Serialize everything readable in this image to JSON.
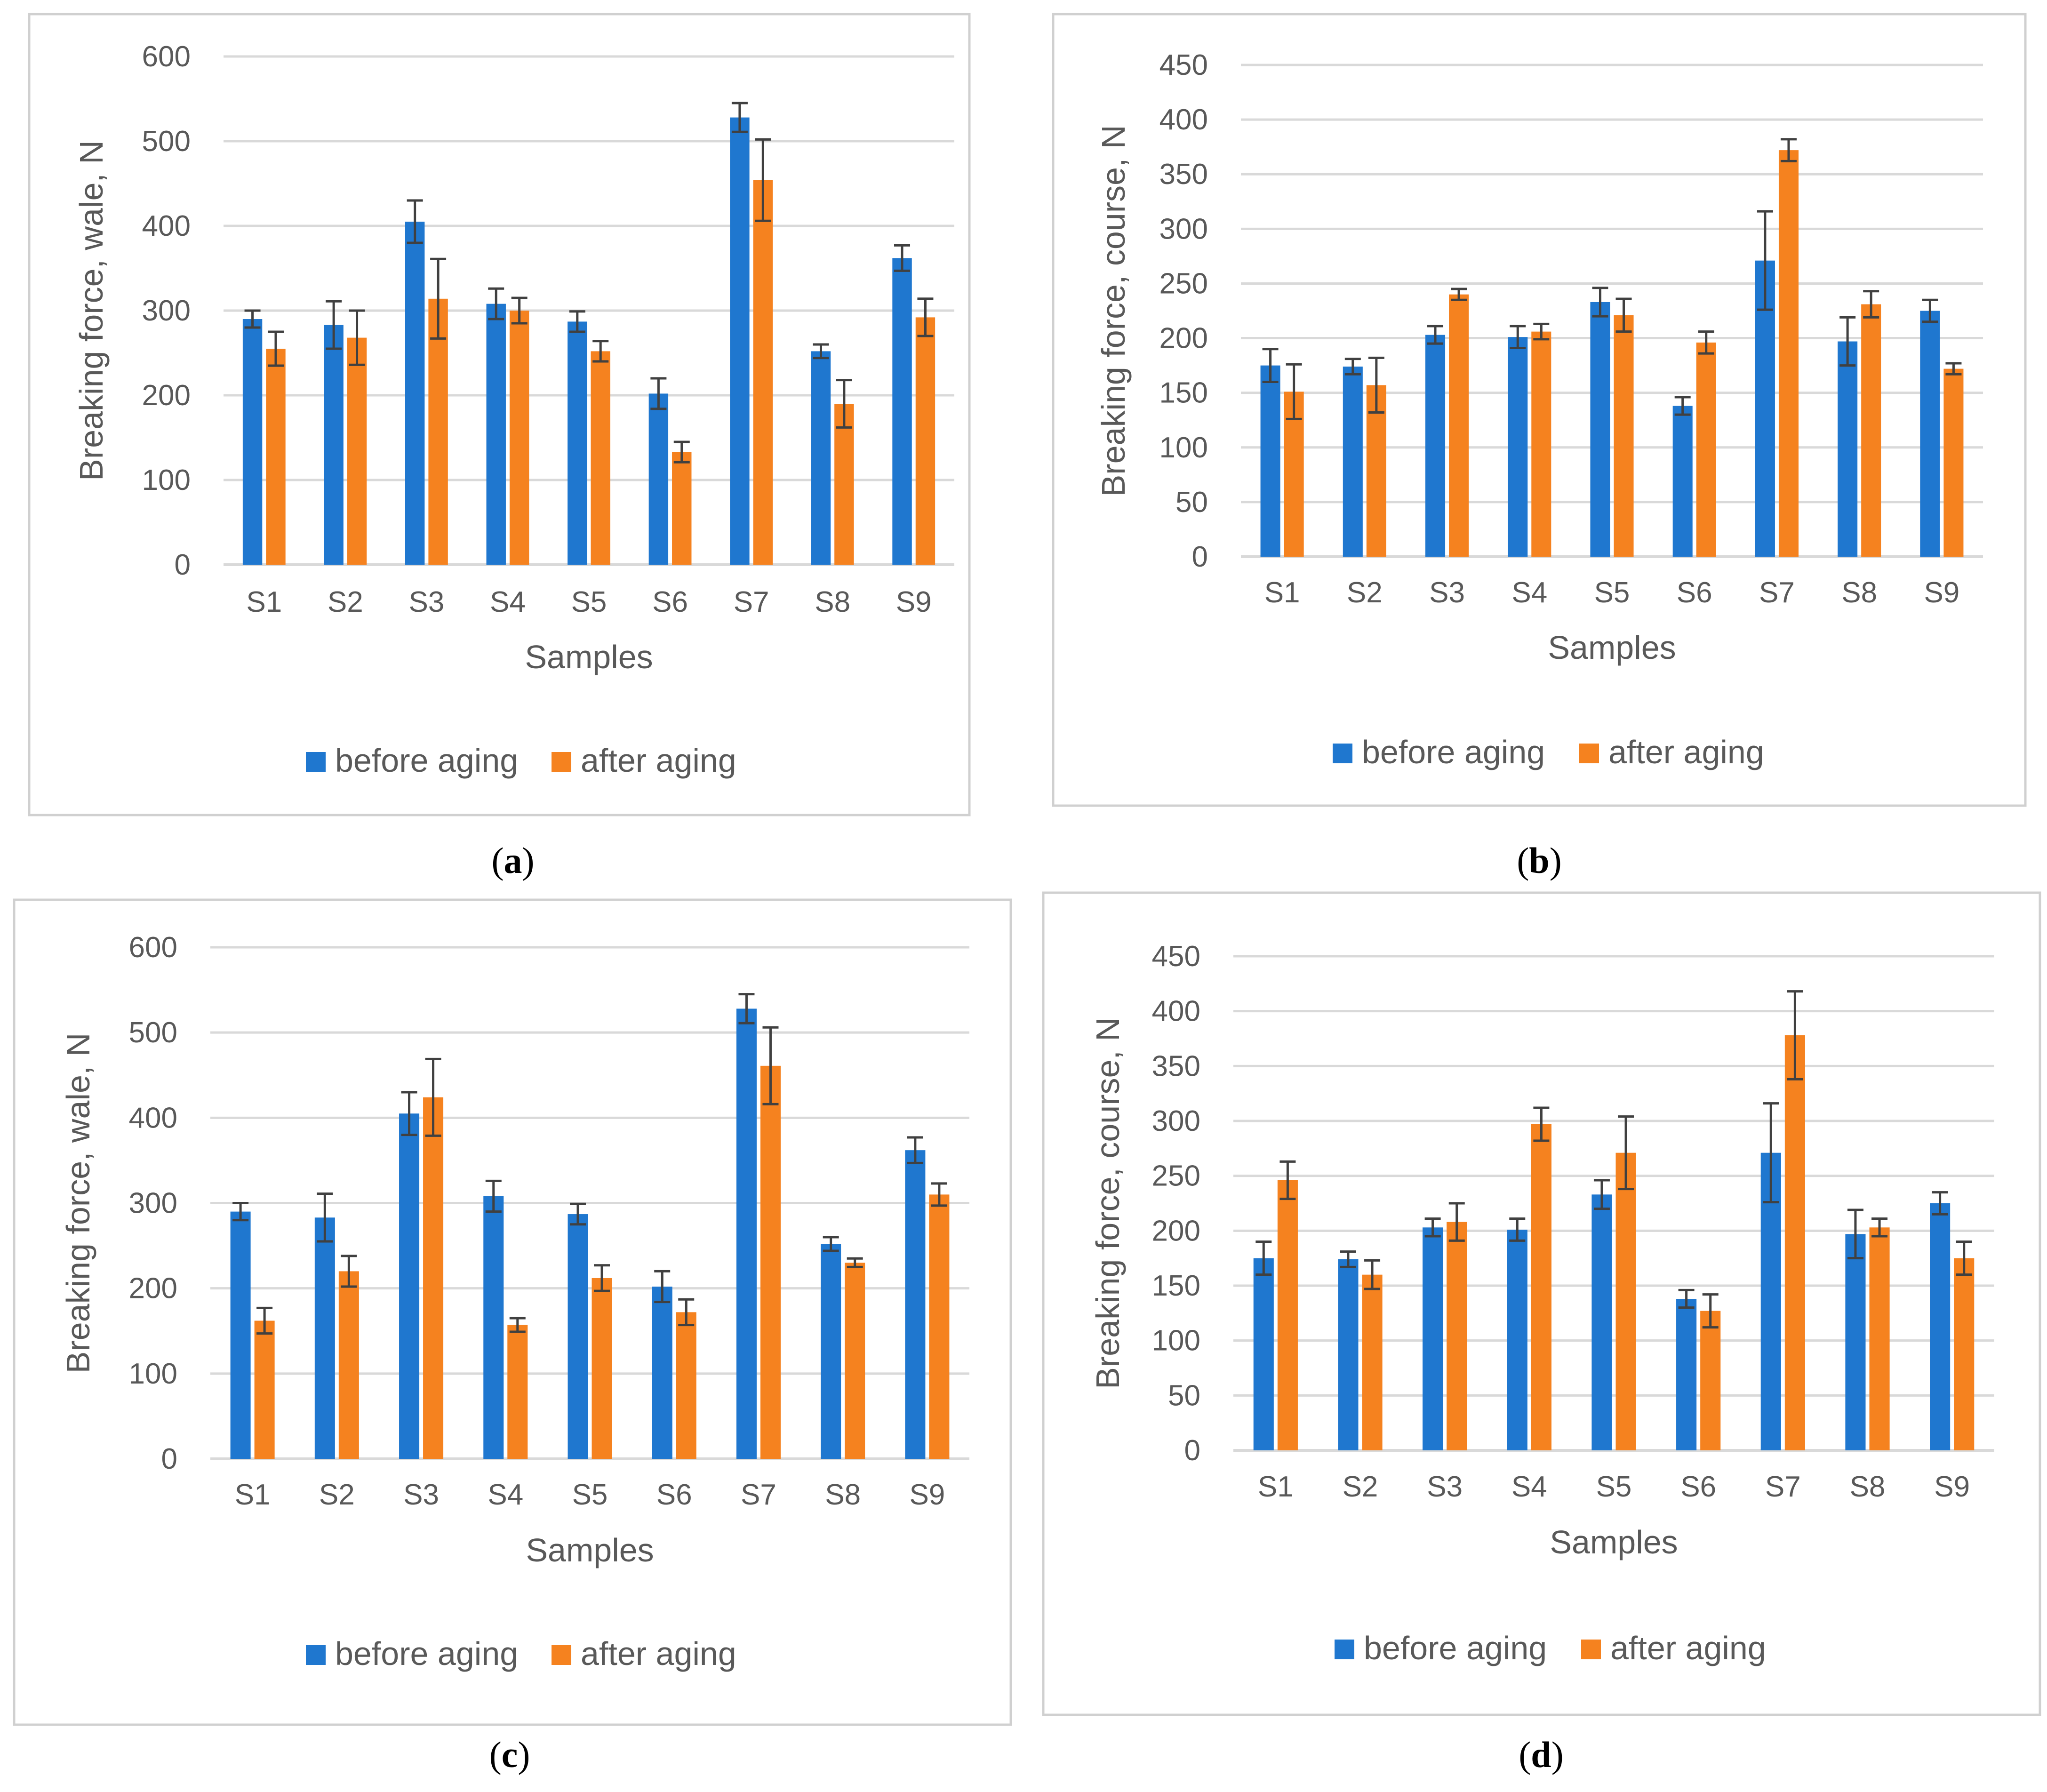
{
  "figure": {
    "legend": {
      "before": "before aging",
      "after": "after aging"
    },
    "colors": {
      "before": "#1f77cf",
      "after": "#f5821f",
      "grid": "#d9d9d9",
      "frame": "#d0d0d0",
      "error": "#404040"
    }
  },
  "chart_data": [
    {
      "id": "a",
      "caption": {
        "open": "(",
        "letter": "a",
        "close": ")"
      },
      "type": "bar",
      "title": "",
      "xlabel": "Samples",
      "ylabel": "Breaking force, wale, N",
      "ylim": [
        0,
        600
      ],
      "yticks": [
        0,
        100,
        200,
        300,
        400,
        500,
        600
      ],
      "grid": true,
      "legend_position": "bottom",
      "categories": [
        "S1",
        "S2",
        "S3",
        "S4",
        "S5",
        "S6",
        "S7",
        "S8",
        "S9"
      ],
      "series": [
        {
          "name": "before aging",
          "values": [
            290,
            283,
            405,
            308,
            287,
            202,
            528,
            252,
            362
          ],
          "errors": [
            10,
            28,
            25,
            18,
            12,
            18,
            17,
            8,
            15
          ]
        },
        {
          "name": "after aging",
          "values": [
            255,
            268,
            314,
            300,
            252,
            133,
            454,
            190,
            292
          ],
          "errors": [
            20,
            32,
            47,
            15,
            12,
            12,
            48,
            28,
            22
          ]
        }
      ]
    },
    {
      "id": "b",
      "caption": {
        "open": "(",
        "letter": "b",
        "close": ")"
      },
      "type": "bar",
      "title": "",
      "xlabel": "Samples",
      "ylabel": "Breaking force, course, N",
      "ylim": [
        0,
        450
      ],
      "yticks": [
        0,
        50,
        100,
        150,
        200,
        250,
        300,
        350,
        400,
        450
      ],
      "grid": true,
      "legend_position": "bottom",
      "categories": [
        "S1",
        "S2",
        "S3",
        "S4",
        "S5",
        "S6",
        "S7",
        "S8",
        "S9"
      ],
      "series": [
        {
          "name": "before aging",
          "values": [
            175,
            174,
            203,
            201,
            233,
            138,
            271,
            197,
            225
          ],
          "errors": [
            15,
            7,
            8,
            10,
            13,
            8,
            45,
            22,
            10
          ]
        },
        {
          "name": "after aging",
          "values": [
            151,
            157,
            240,
            206,
            221,
            196,
            372,
            231,
            172
          ],
          "errors": [
            25,
            25,
            5,
            7,
            15,
            10,
            10,
            12,
            5
          ]
        }
      ]
    },
    {
      "id": "c",
      "caption": {
        "open": "(",
        "letter": "c",
        "close": ")"
      },
      "type": "bar",
      "title": "",
      "xlabel": "Samples",
      "ylabel": "Breaking force, wale, N",
      "ylim": [
        0,
        600
      ],
      "yticks": [
        0,
        100,
        200,
        300,
        400,
        500,
        600
      ],
      "grid": true,
      "legend_position": "bottom",
      "categories": [
        "S1",
        "S2",
        "S3",
        "S4",
        "S5",
        "S6",
        "S7",
        "S8",
        "S9"
      ],
      "series": [
        {
          "name": "before aging",
          "values": [
            290,
            283,
            405,
            308,
            287,
            202,
            528,
            252,
            362
          ],
          "errors": [
            10,
            28,
            25,
            18,
            12,
            18,
            17,
            8,
            15
          ]
        },
        {
          "name": "after aging",
          "values": [
            162,
            220,
            424,
            157,
            212,
            172,
            461,
            230,
            310
          ],
          "errors": [
            15,
            18,
            45,
            8,
            15,
            15,
            45,
            5,
            13
          ]
        }
      ]
    },
    {
      "id": "d",
      "caption": {
        "open": "(",
        "letter": "d",
        "close": ")"
      },
      "type": "bar",
      "title": "",
      "xlabel": "Samples",
      "ylabel": "Breaking force, course, N",
      "ylim": [
        0,
        450
      ],
      "yticks": [
        0,
        50,
        100,
        150,
        200,
        250,
        300,
        350,
        400,
        450
      ],
      "grid": true,
      "legend_position": "bottom",
      "categories": [
        "S1",
        "S2",
        "S3",
        "S4",
        "S5",
        "S6",
        "S7",
        "S8",
        "S9"
      ],
      "series": [
        {
          "name": "before aging",
          "values": [
            175,
            174,
            203,
            201,
            233,
            138,
            271,
            197,
            225
          ],
          "errors": [
            15,
            7,
            8,
            10,
            13,
            8,
            45,
            22,
            10
          ]
        },
        {
          "name": "after aging",
          "values": [
            246,
            160,
            208,
            297,
            271,
            127,
            378,
            203,
            175
          ],
          "errors": [
            17,
            13,
            17,
            15,
            33,
            15,
            40,
            8,
            15
          ]
        }
      ]
    }
  ]
}
